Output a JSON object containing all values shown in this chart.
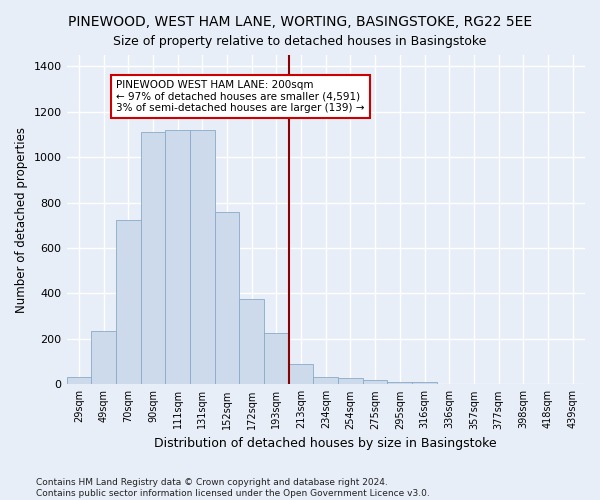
{
  "title": "PINEWOOD, WEST HAM LANE, WORTING, BASINGSTOKE, RG22 5EE",
  "subtitle": "Size of property relative to detached houses in Basingstoke",
  "xlabel": "Distribution of detached houses by size in Basingstoke",
  "ylabel": "Number of detached properties",
  "categories": [
    "29sqm",
    "49sqm",
    "70sqm",
    "90sqm",
    "111sqm",
    "131sqm",
    "152sqm",
    "172sqm",
    "193sqm",
    "213sqm",
    "234sqm",
    "254sqm",
    "275sqm",
    "295sqm",
    "316sqm",
    "336sqm",
    "357sqm",
    "377sqm",
    "398sqm",
    "418sqm",
    "439sqm"
  ],
  "values": [
    30,
    235,
    725,
    1110,
    1120,
    1120,
    760,
    375,
    225,
    90,
    30,
    27,
    17,
    10,
    10,
    0,
    0,
    0,
    0,
    0,
    0
  ],
  "bar_color": "#ccdaeb",
  "bar_edge_color": "#8aaac8",
  "vline_color": "#8b0000",
  "annotation_text": "PINEWOOD WEST HAM LANE: 200sqm\n← 97% of detached houses are smaller (4,591)\n3% of semi-detached houses are larger (139) →",
  "annotation_box_color": "#cc0000",
  "ylim": [
    0,
    1450
  ],
  "yticks": [
    0,
    200,
    400,
    600,
    800,
    1000,
    1200,
    1400
  ],
  "background_color": "#e8eef8",
  "grid_color": "#ffffff",
  "footer": "Contains HM Land Registry data © Crown copyright and database right 2024.\nContains public sector information licensed under the Open Government Licence v3.0.",
  "title_fontsize": 10,
  "xlabel_fontsize": 9,
  "ylabel_fontsize": 8.5,
  "footer_fontsize": 6.5
}
